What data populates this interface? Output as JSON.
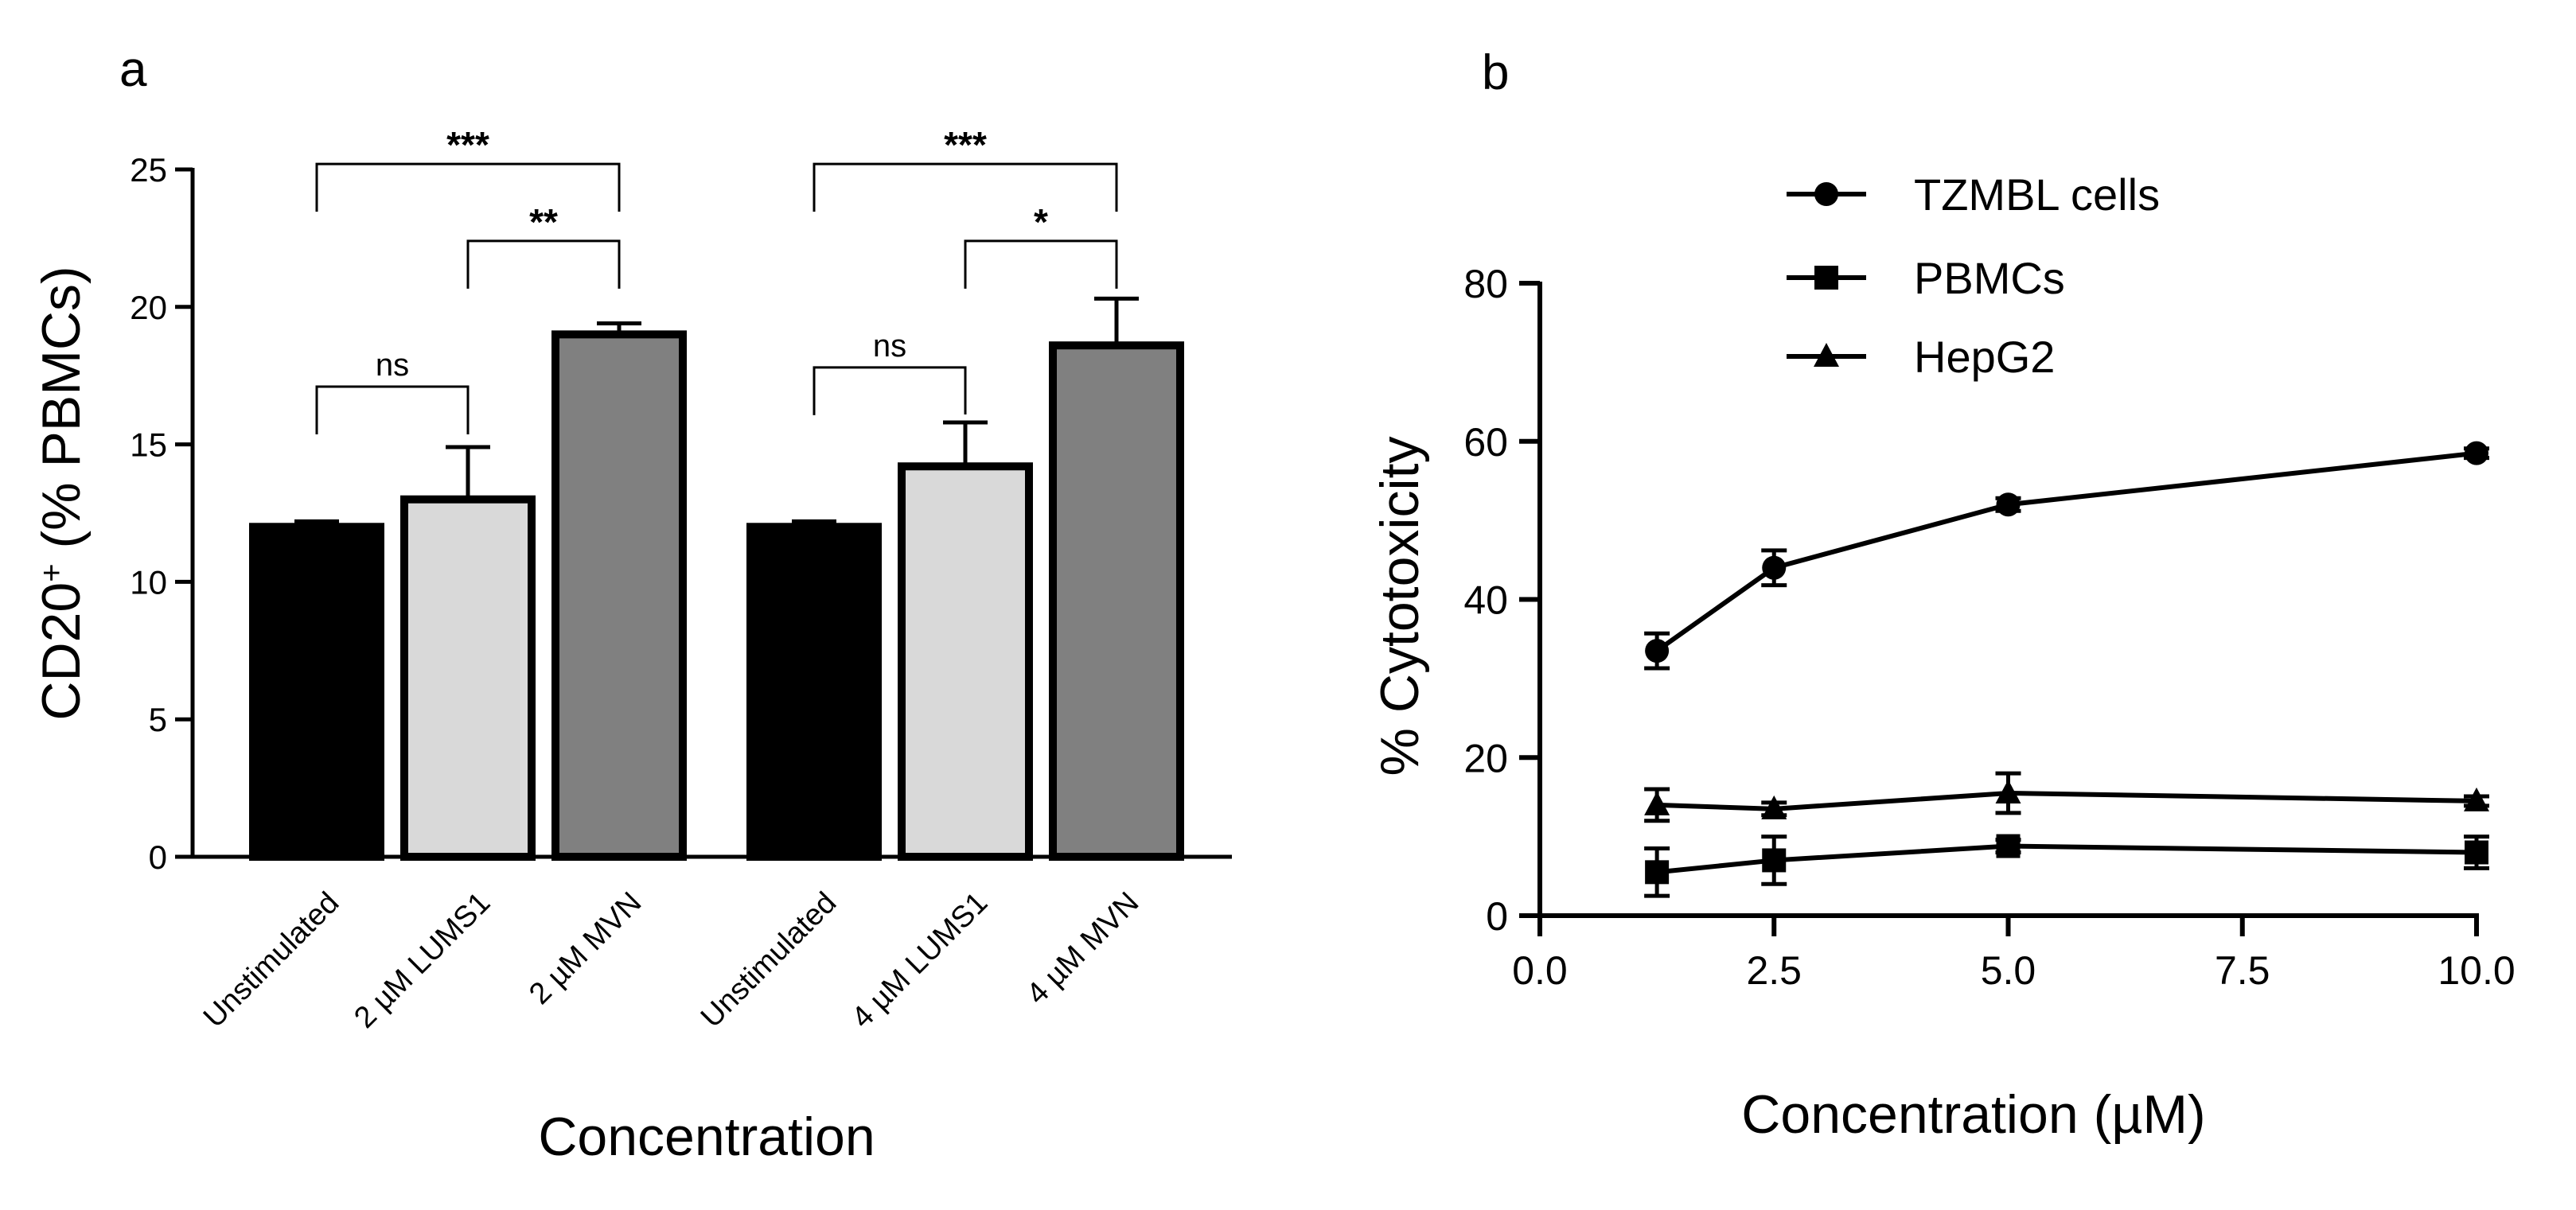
{
  "chart_data": [
    {
      "panel_label": "a",
      "type": "bar",
      "xlabel": "Concentration",
      "ylabel": "CD20",
      "ylabel_sup": "+",
      "ylabel_rest": " (% PBMCs)",
      "ylim": [
        0,
        25
      ],
      "yticks": [
        0,
        5,
        10,
        15,
        20,
        25
      ],
      "groups": [
        {
          "categories": [
            "Unstimulated",
            "2 µM LUMS1",
            "2 µM MVN"
          ],
          "values": [
            12.0,
            13.0,
            19.0
          ],
          "errors": [
            0.2,
            1.9,
            0.4
          ],
          "colors": [
            "#000000",
            "#d9d9d9",
            "#808080"
          ]
        },
        {
          "categories": [
            "Unstimulated",
            "4 µM LUMS1",
            "4 µM MVN"
          ],
          "values": [
            12.0,
            14.2,
            18.6
          ],
          "errors": [
            0.2,
            1.6,
            1.7
          ],
          "colors": [
            "#000000",
            "#d9d9d9",
            "#808080"
          ]
        }
      ],
      "significance": [
        {
          "group": 0,
          "from": 0,
          "to": 1,
          "label": "ns",
          "y": 17.1
        },
        {
          "group": 0,
          "from": 1,
          "to": 2,
          "label": "**",
          "y": 22.4
        },
        {
          "group": 0,
          "from": 0,
          "to": 2,
          "label": "***",
          "y": 25.2
        },
        {
          "group": 1,
          "from": 0,
          "to": 1,
          "label": "ns",
          "y": 17.8
        },
        {
          "group": 1,
          "from": 1,
          "to": 2,
          "label": "*",
          "y": 22.4
        },
        {
          "group": 1,
          "from": 0,
          "to": 2,
          "label": "***",
          "y": 25.2
        }
      ]
    },
    {
      "panel_label": "b",
      "type": "line",
      "xlabel": "Concentration (µM)",
      "ylabel": "% Cytotoxicity",
      "xlim": [
        0,
        10
      ],
      "ylim": [
        0,
        80
      ],
      "xticks": [
        0,
        2.5,
        5,
        7.5,
        10
      ],
      "xtick_labels": [
        "0.0",
        "2.5",
        "5.0",
        "7.5",
        "10.0"
      ],
      "yticks": [
        0,
        20,
        40,
        60,
        80
      ],
      "ytick_labels": [
        "0",
        "20",
        "40",
        "60",
        "80"
      ],
      "x": [
        1.25,
        2.5,
        5,
        10
      ],
      "series": [
        {
          "name": "TZMBL cells",
          "marker": "circle",
          "values": [
            33.5,
            44,
            52,
            58.5
          ],
          "errors": [
            2.2,
            2.2,
            0.8,
            0.6
          ]
        },
        {
          "name": "PBMCs",
          "marker": "square",
          "values": [
            5.5,
            7,
            8.8,
            8
          ],
          "errors": [
            3,
            3,
            0.8,
            2
          ]
        },
        {
          "name": "HepG2",
          "marker": "triangle",
          "values": [
            14,
            13.5,
            15.5,
            14.5
          ],
          "errors": [
            2,
            0.8,
            2.5,
            0.6
          ]
        }
      ]
    }
  ]
}
